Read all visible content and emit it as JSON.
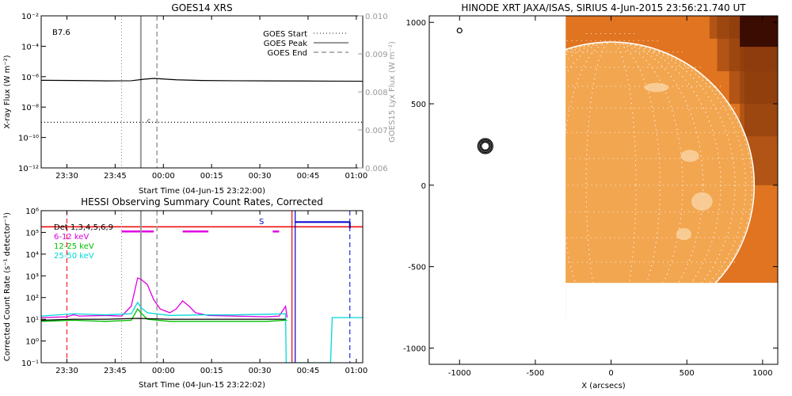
{
  "chart_data": [
    {
      "type": "line",
      "title": "GOES14 XRS",
      "xlabel": "Start Time (04-Jun-15 23:22:00)",
      "ylabel": "X-ray Flux (W m⁻²)",
      "y2label": "GOES15 Lyx Flux (W m⁻²)",
      "x_ticks": [
        "23:30",
        "23:45",
        "00:00",
        "00:15",
        "00:30",
        "00:45",
        "01:00"
      ],
      "y_ticks": [
        "10⁻¹²",
        "10⁻¹⁰",
        "10⁻⁸",
        "10⁻⁶",
        "10⁻⁴",
        "10⁻²"
      ],
      "y2_ticks": [
        "0.006",
        "0.007",
        "0.008",
        "0.009",
        "0.010"
      ],
      "ylog": true,
      "ylim": [
        1e-12,
        0.01
      ],
      "y2lim": [
        0.006,
        0.01
      ],
      "xlim_minutes": [
        0,
        100
      ],
      "annotation": "B7.6",
      "small_label": "C",
      "legend_position": "top-right",
      "legend": [
        {
          "name": "GOES Start",
          "style": "dotted"
        },
        {
          "name": "GOES Peak",
          "style": "solid"
        },
        {
          "name": "GOES End",
          "style": "dashed"
        }
      ],
      "flux_series": [
        [
          0,
          5.8e-07
        ],
        [
          10,
          5.6e-07
        ],
        [
          20,
          5.3e-07
        ],
        [
          28,
          5.4e-07
        ],
        [
          32,
          6.8e-07
        ],
        [
          35,
          7.7e-07
        ],
        [
          38,
          7e-07
        ],
        [
          42,
          6.2e-07
        ],
        [
          50,
          5.6e-07
        ],
        [
          60,
          5.4e-07
        ],
        [
          70,
          5.3e-07
        ],
        [
          80,
          5.2e-07
        ],
        [
          90,
          5.1e-07
        ],
        [
          100,
          5e-07
        ]
      ],
      "threshold_level": 1e-09,
      "goes_start_min": 25,
      "goes_peak_min": 31,
      "goes_end_min": 36
    },
    {
      "type": "line",
      "title": "HESSI Observing Summary Count Rates, Corrected",
      "xlabel": "Start Time (04-Jun-15 23:22:02)",
      "ylabel": "Corrected Count Rate (s⁻¹ detector⁻¹)",
      "x_ticks": [
        "23:30",
        "23:45",
        "00:00",
        "00:15",
        "00:30",
        "00:45",
        "01:00"
      ],
      "y_ticks": [
        "10⁻¹",
        "10⁰",
        "10¹",
        "10²",
        "10³",
        "10⁴",
        "10⁵",
        "10⁶"
      ],
      "ylog": true,
      "ylim": [
        0.1,
        1000000
      ],
      "xlim_minutes": [
        0,
        100
      ],
      "legend": [
        {
          "name": "Det 1,3,4,5,6,9",
          "color": "#000000"
        },
        {
          "name": "6-12 keV",
          "color": "#e000e0"
        },
        {
          "name": "12-25 keV",
          "color": "#00c000"
        },
        {
          "name": "25-50 keV",
          "color": "#00d8d8"
        }
      ],
      "s_label": "S",
      "series": [
        {
          "name": "6-12 keV",
          "color": "#e000e0",
          "points": [
            [
              0,
              12
            ],
            [
              8,
              13
            ],
            [
              10,
              16
            ],
            [
              12,
              14
            ],
            [
              20,
              15
            ],
            [
              25,
              14
            ],
            [
              28,
              40
            ],
            [
              30,
              800
            ],
            [
              31,
              700
            ],
            [
              33,
              400
            ],
            [
              35,
              80
            ],
            [
              37,
              30
            ],
            [
              40,
              20
            ],
            [
              42,
              30
            ],
            [
              44,
              70
            ],
            [
              46,
              40
            ],
            [
              48,
              20
            ],
            [
              52,
              15
            ],
            [
              60,
              14
            ],
            [
              70,
              13
            ],
            [
              74,
              14
            ],
            [
              76,
              40
            ],
            [
              76.5,
              12
            ]
          ]
        },
        {
          "name": "12-25 keV",
          "color": "#00c000",
          "points": [
            [
              0,
              8
            ],
            [
              10,
              9
            ],
            [
              20,
              8
            ],
            [
              28,
              9
            ],
            [
              30,
              30
            ],
            [
              31,
              20
            ],
            [
              33,
              10
            ],
            [
              40,
              8
            ],
            [
              50,
              8
            ],
            [
              60,
              8
            ],
            [
              70,
              8
            ],
            [
              76,
              9
            ],
            [
              76.5,
              9
            ]
          ]
        },
        {
          "name": "25-50 keV",
          "color": "#00d8d8",
          "points": [
            [
              0,
              14
            ],
            [
              10,
              18
            ],
            [
              20,
              16
            ],
            [
              28,
              18
            ],
            [
              30,
              60
            ],
            [
              31,
              35
            ],
            [
              33,
              20
            ],
            [
              40,
              15
            ],
            [
              50,
              16
            ],
            [
              60,
              16
            ],
            [
              70,
              17
            ],
            [
              76,
              18
            ],
            [
              76.2,
              0.1
            ],
            [
              90,
              0.1
            ],
            [
              90.5,
              12
            ],
            [
              100,
              12
            ]
          ]
        },
        {
          "name": "Det 1,3,4,5,6,9",
          "color": "#000000",
          "points": [
            [
              0,
              9
            ],
            [
              10,
              10
            ],
            [
              20,
              10
            ],
            [
              30,
              11
            ],
            [
              40,
              10
            ],
            [
              50,
              10
            ],
            [
              60,
              10
            ],
            [
              70,
              10
            ],
            [
              76,
              10
            ]
          ]
        }
      ],
      "magenta_bars": [
        [
          25,
          35
        ],
        [
          44,
          52
        ],
        [
          72,
          74
        ]
      ],
      "red_level": 180000,
      "red_dashed_min": 8,
      "red_solid_min": 78,
      "blue_solid_min": 79,
      "blue_dashed_min": 96,
      "blue_bar": [
        79,
        96,
        300000
      ],
      "goes_start_min": 25,
      "goes_peak_min": 31,
      "goes_end_min": 36
    },
    {
      "type": "heatmap",
      "title": "HINODE XRT JAXA/ISAS, SIRIUS  4-Jun-2015 23:56:21.740 UT",
      "xlabel": "X (arcsecs)",
      "ylabel": "",
      "x_ticks": [
        "-1000",
        "-500",
        "0",
        "500",
        "1000"
      ],
      "y_ticks": [
        "-1000",
        "-500",
        "0",
        "500",
        "1000"
      ],
      "xlim": [
        -1200,
        1100
      ],
      "ylim": [
        -1100,
        1040
      ],
      "image_extent": {
        "x": [
          -300,
          1100
        ],
        "y": [
          -600,
          1040
        ]
      },
      "limb_radius": 945,
      "contour_center": [
        -830,
        240
      ],
      "small_circle_center": [
        -1000,
        950
      ],
      "colors": {
        "disk": "#f2a650",
        "offlimb": "#e07420",
        "corner": "#8b3b0c",
        "dark": "#3a0c02",
        "limb": "#ffffff"
      }
    }
  ]
}
